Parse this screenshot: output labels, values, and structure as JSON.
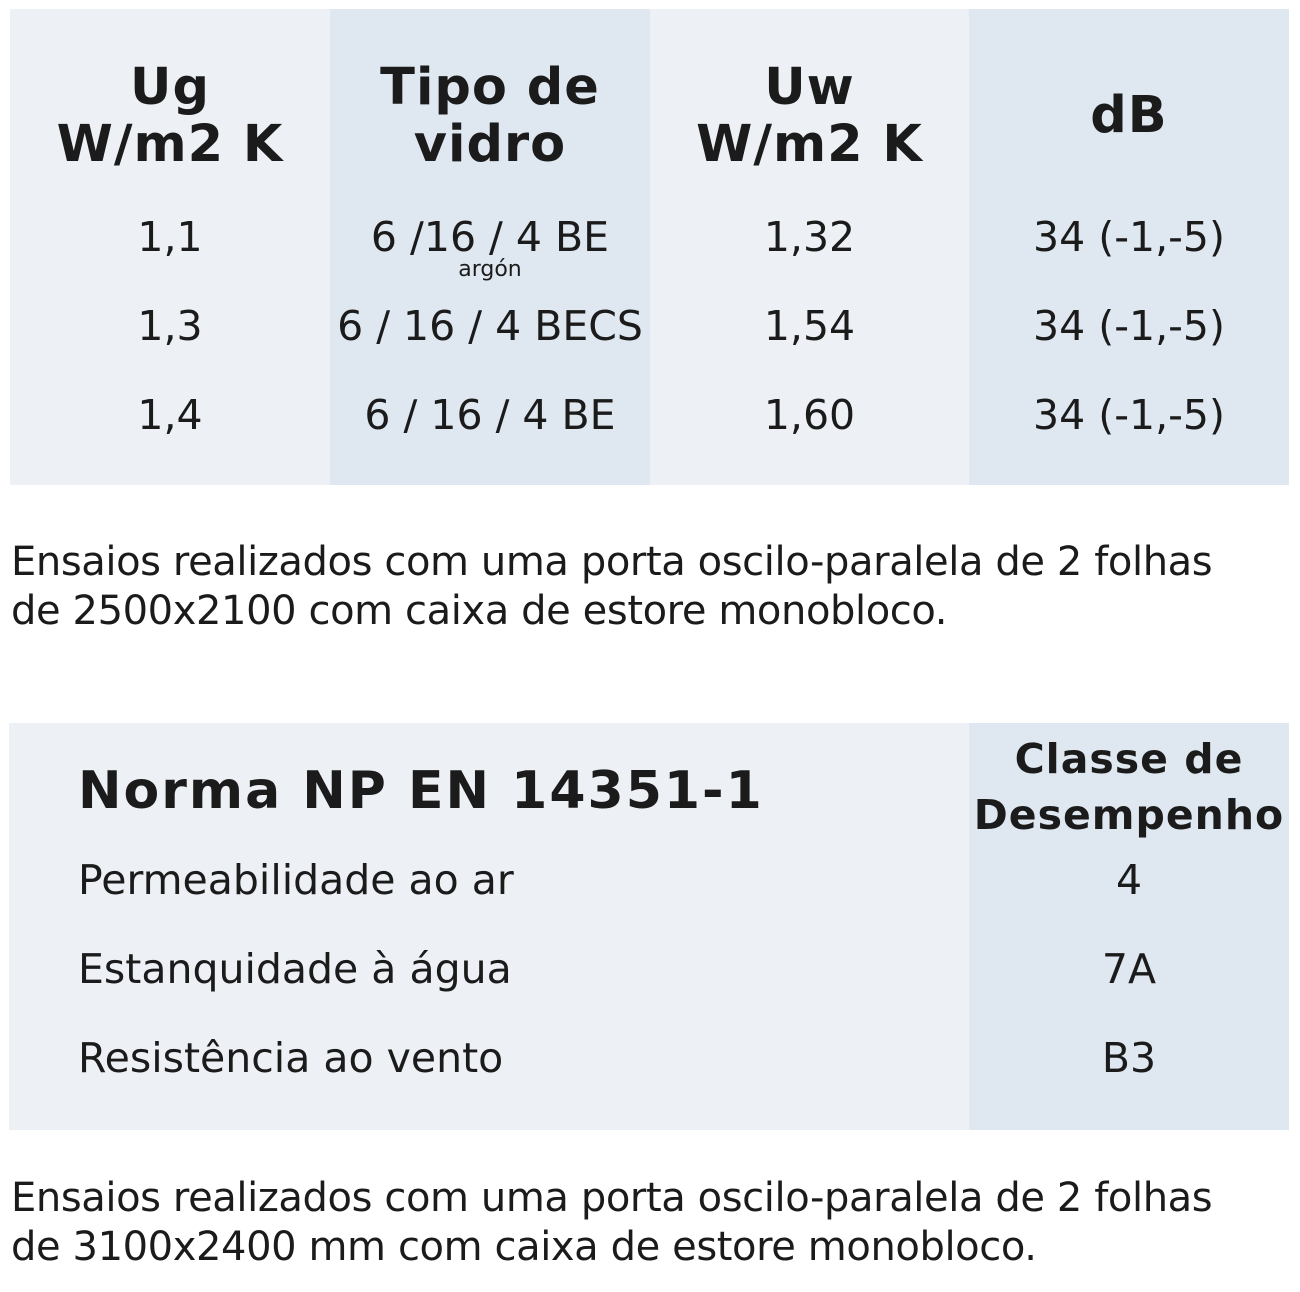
{
  "table1": {
    "headers": [
      [
        "Ug",
        "W/m2 K"
      ],
      [
        "Tipo de",
        "vidro"
      ],
      [
        "Uw",
        "W/m2 K"
      ],
      [
        "dB"
      ]
    ],
    "rows": [
      {
        "ug": "1,1",
        "glass": "6 /16 / 4 BE",
        "glass_note": "argón",
        "uw": "1,32",
        "db": "34 (-1,-5)"
      },
      {
        "ug": "1,3",
        "glass": "6 / 16 / 4 BECS",
        "uw": "1,54",
        "db": "34 (-1,-5)"
      },
      {
        "ug": "1,4",
        "glass": "6 / 16 / 4 BE",
        "uw": "1,60",
        "db": "34 (-1,-5)"
      }
    ]
  },
  "note1": [
    "Ensaios realizados com uma porta oscilo-paralela de 2 folhas",
    "de 2500x2100 com caixa de estore monobloco."
  ],
  "table2": {
    "title": "Norma NP EN 14351-1",
    "column_header": [
      "Classe de",
      "Desempenho"
    ],
    "rows": [
      {
        "label": "Permeabilidade ao ar",
        "value": "4"
      },
      {
        "label": "Estanquidade à água",
        "value": "7A"
      },
      {
        "label": "Resistência ao vento",
        "value": "B3"
      }
    ]
  },
  "note2": [
    "Ensaios realizados com uma porta oscilo-paralela de 2 folhas",
    "de 3100x2400 mm com caixa de estore monobloco."
  ]
}
